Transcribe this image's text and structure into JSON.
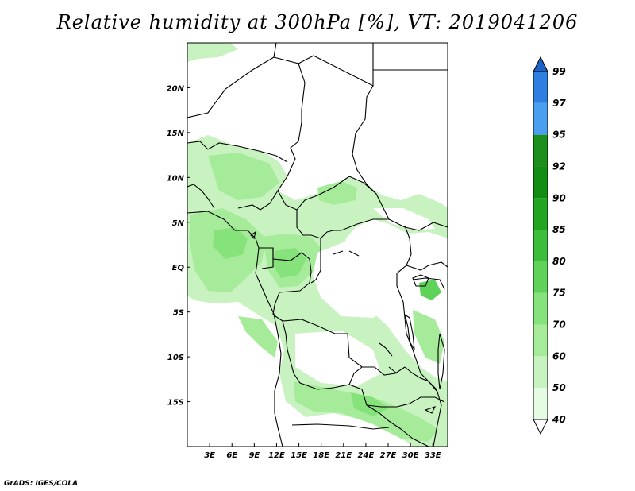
{
  "title": "Relative humidity at 300hPa [%], VT: 2019041206",
  "footer": "GrADS: IGES/COLA",
  "map": {
    "lon_range": [
      0,
      35
    ],
    "lat_range": [
      -20,
      25
    ],
    "x_ticks": [
      "3E",
      "6E",
      "9E",
      "12E",
      "15E",
      "18E",
      "21E",
      "24E",
      "27E",
      "30E",
      "33E"
    ],
    "y_ticks": [
      "20N",
      "15N",
      "10N",
      "5N",
      "EQ",
      "5S",
      "10S",
      "15S"
    ]
  },
  "colorbar": {
    "levels": [
      "40",
      "50",
      "60",
      "70",
      "75",
      "80",
      "85",
      "90",
      "92",
      "95",
      "97",
      "99"
    ],
    "colors": [
      "#ffffff",
      "#e6fbe3",
      "#c8f3c1",
      "#a6eb9a",
      "#86e27a",
      "#5fd25a",
      "#3cbe3c",
      "#23a523",
      "#128c12",
      "#1c8e1c",
      "#4b9ff0",
      "#2f7fe0",
      "#1a63c8"
    ]
  }
}
